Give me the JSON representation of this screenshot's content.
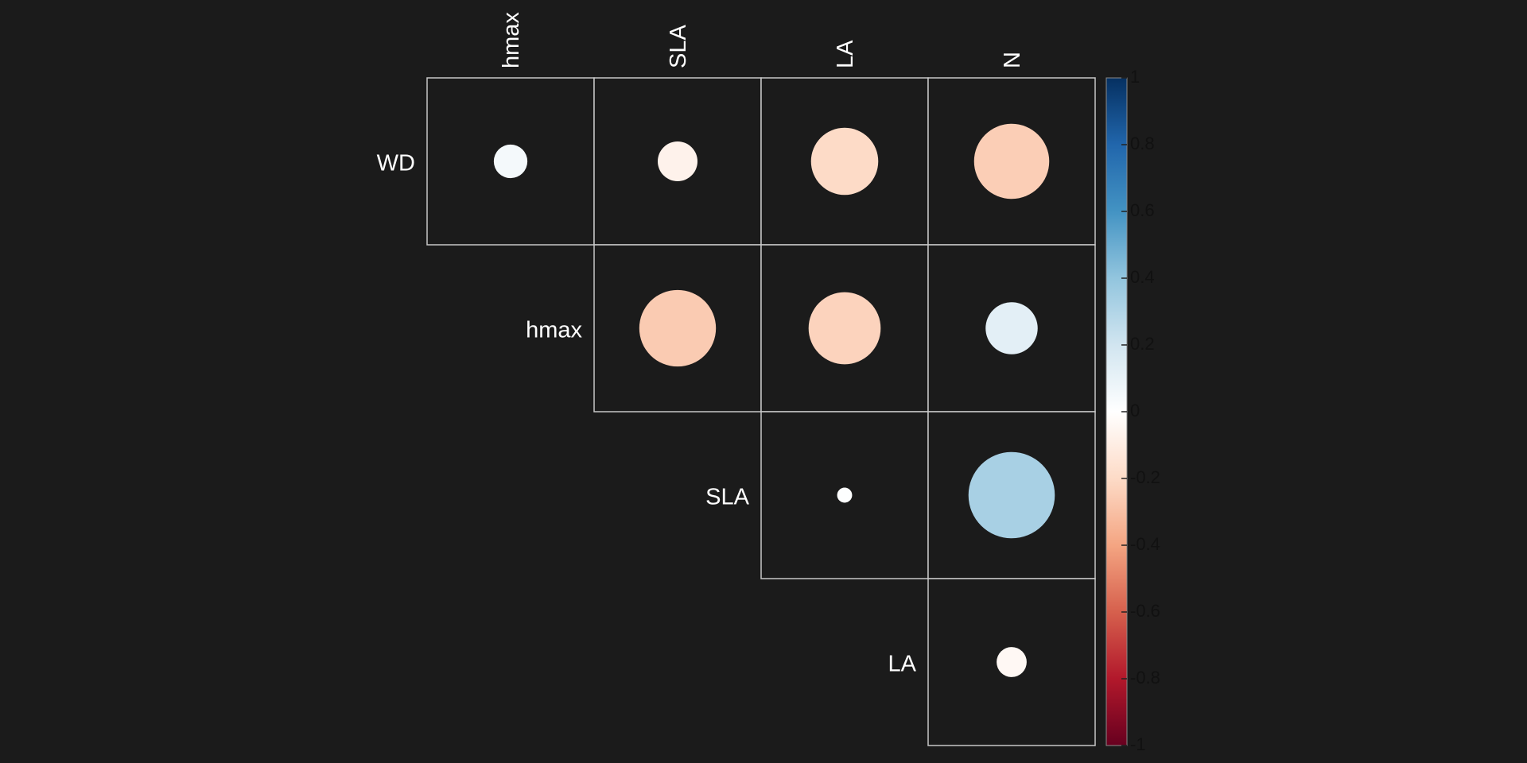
{
  "chart_data": {
    "type": "heatmap",
    "shape": "upper-triangular-circle-correlogram",
    "columns": [
      "hmax",
      "SLA",
      "LA",
      "N"
    ],
    "rows": [
      "WD",
      "hmax",
      "SLA",
      "LA"
    ],
    "cells": [
      {
        "row": "WD",
        "col": "hmax",
        "value": 0.05
      },
      {
        "row": "WD",
        "col": "SLA",
        "value": -0.07
      },
      {
        "row": "WD",
        "col": "LA",
        "value": -0.2
      },
      {
        "row": "WD",
        "col": "N",
        "value": -0.25
      },
      {
        "row": "hmax",
        "col": "SLA",
        "value": -0.26
      },
      {
        "row": "hmax",
        "col": "LA",
        "value": -0.23
      },
      {
        "row": "hmax",
        "col": "N",
        "value": 0.12
      },
      {
        "row": "SLA",
        "col": "LA",
        "value": 0.01
      },
      {
        "row": "SLA",
        "col": "N",
        "value": 0.33
      },
      {
        "row": "LA",
        "col": "N",
        "value": -0.04
      }
    ],
    "legend": {
      "min": -1,
      "max": 1,
      "ticks": [
        "1",
        "0.8",
        "0.6",
        "0.4",
        "0.2",
        "0",
        "-0.2",
        "-0.4",
        "-0.6",
        "-0.8",
        "-1"
      ],
      "colors": [
        "#67001F",
        "#B2182B",
        "#D6604D",
        "#F4A582",
        "#FDDBC7",
        "#FFFFFF",
        "#D1E5F0",
        "#92C5DE",
        "#4393C3",
        "#2166AC",
        "#053061"
      ],
      "placement": "right"
    }
  }
}
